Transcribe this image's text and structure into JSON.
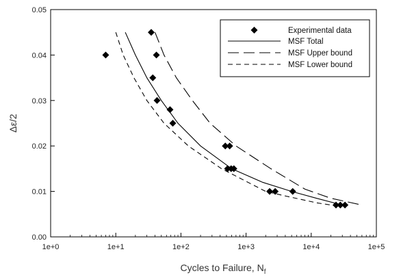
{
  "chart_data": {
    "type": "scatter",
    "xlabel": "Cycles to Failure, N",
    "xlabel_sub": "f",
    "ylabel": "Δε/2",
    "x_scale": "log",
    "xlim": [
      1,
      100000
    ],
    "ylim": [
      0,
      0.05
    ],
    "x_ticks": [
      1,
      10,
      100,
      1000,
      10000,
      100000
    ],
    "x_tick_labels": [
      "1e+0",
      "1e+1",
      "1e+2",
      "1e+3",
      "1e+4",
      "1e+5"
    ],
    "y_ticks": [
      0,
      0.01,
      0.02,
      0.03,
      0.04,
      0.05
    ],
    "y_tick_labels": [
      "0.00",
      "0.01",
      "0.02",
      "0.03",
      "0.04",
      "0.05"
    ],
    "grid": false,
    "legend_position": "top-right",
    "legend": [
      {
        "label": "Experimental data",
        "style": "diamond"
      },
      {
        "label": "MSF Total",
        "style": "solid"
      },
      {
        "label": "MSF Upper bound",
        "style": "long-dash"
      },
      {
        "label": "MSF Lower bound",
        "style": "short-dash"
      }
    ],
    "series": [
      {
        "name": "Experimental data",
        "kind": "points",
        "points": [
          [
            7,
            0.04
          ],
          [
            35,
            0.045
          ],
          [
            42,
            0.04
          ],
          [
            37,
            0.035
          ],
          [
            43,
            0.03
          ],
          [
            68,
            0.028
          ],
          [
            75,
            0.025
          ],
          [
            480,
            0.02
          ],
          [
            560,
            0.02
          ],
          [
            520,
            0.015
          ],
          [
            590,
            0.015
          ],
          [
            650,
            0.015
          ],
          [
            2300,
            0.01
          ],
          [
            2800,
            0.01
          ],
          [
            5200,
            0.01
          ],
          [
            24000,
            0.007
          ],
          [
            28000,
            0.007
          ],
          [
            33000,
            0.007
          ]
        ]
      },
      {
        "name": "MSF Total",
        "kind": "line",
        "points": [
          [
            14,
            0.045
          ],
          [
            20,
            0.04
          ],
          [
            30,
            0.035
          ],
          [
            50,
            0.03
          ],
          [
            90,
            0.025
          ],
          [
            200,
            0.02
          ],
          [
            600,
            0.015
          ],
          [
            1800,
            0.012
          ],
          [
            5000,
            0.01
          ],
          [
            12000,
            0.0085
          ],
          [
            30000,
            0.007
          ]
        ]
      },
      {
        "name": "MSF Upper bound",
        "kind": "line",
        "points": [
          [
            40,
            0.045
          ],
          [
            55,
            0.04
          ],
          [
            85,
            0.035
          ],
          [
            150,
            0.03
          ],
          [
            280,
            0.025
          ],
          [
            700,
            0.02
          ],
          [
            2400,
            0.015
          ],
          [
            8000,
            0.0105
          ],
          [
            20000,
            0.0085
          ],
          [
            60000,
            0.007
          ]
        ]
      },
      {
        "name": "MSF Lower bound",
        "kind": "line",
        "points": [
          [
            10,
            0.045
          ],
          [
            13,
            0.04
          ],
          [
            19,
            0.035
          ],
          [
            30,
            0.03
          ],
          [
            55,
            0.025
          ],
          [
            130,
            0.02
          ],
          [
            420,
            0.015
          ],
          [
            2000,
            0.01
          ],
          [
            4000,
            0.009
          ],
          [
            12000,
            0.0075
          ],
          [
            25000,
            0.0068
          ]
        ]
      }
    ]
  }
}
